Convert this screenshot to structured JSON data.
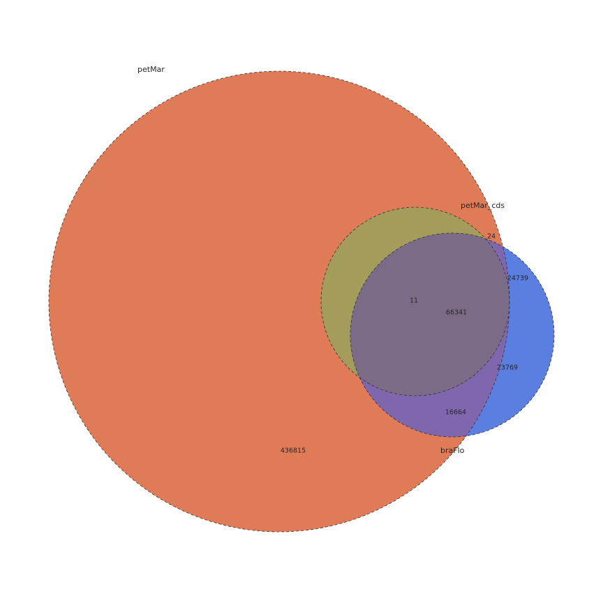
{
  "chart_data": {
    "type": "venn",
    "sets": [
      {
        "name": "petMar",
        "color": "#e07b58"
      },
      {
        "name": "petMar_cds",
        "color": "#a39c5b"
      },
      {
        "name": "braFlo",
        "color": "#5a7fe0"
      }
    ],
    "regions": [
      {
        "sets": [
          "petMar"
        ],
        "value": "436815"
      },
      {
        "sets": [
          "petMar",
          "petMar_cds"
        ],
        "value": "24"
      },
      {
        "sets": [
          "petMar_cds"
        ],
        "value": "11"
      },
      {
        "sets": [
          "petMar",
          "petMar_cds",
          "braFlo"
        ],
        "value": "66341"
      },
      {
        "sets": [
          "petMar_cds",
          "braFlo"
        ],
        "value": "24739"
      },
      {
        "sets": [
          "braFlo"
        ],
        "value": "23769"
      },
      {
        "sets": [
          "petMar",
          "braFlo"
        ],
        "value": "16664"
      }
    ],
    "colors": {
      "triple_overlap": "#7c6b86",
      "petMar_braFlo_overlap": "#7f66ad",
      "cds_braFlo_overlap": "#8750b3"
    }
  }
}
